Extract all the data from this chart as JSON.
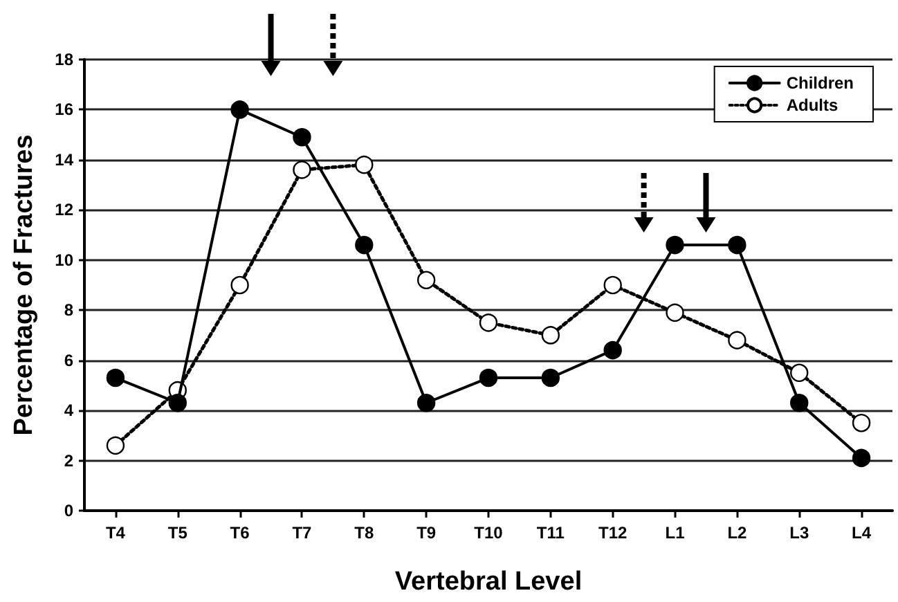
{
  "chart_data": {
    "type": "line",
    "xlabel": "Vertebral Level",
    "ylabel": "Percentage of Fractures",
    "categories": [
      "T4",
      "T5",
      "T6",
      "T7",
      "T8",
      "T9",
      "T10",
      "T11",
      "T12",
      "L1",
      "L2",
      "L3",
      "L4"
    ],
    "series": [
      {
        "name": "Children",
        "color": "#000000",
        "line_style": "solid",
        "marker": "circle",
        "values": [
          5.3,
          4.3,
          16.0,
          14.9,
          10.6,
          4.3,
          5.3,
          5.3,
          6.4,
          10.6,
          10.6,
          4.3,
          2.1
        ]
      },
      {
        "name": "Adults",
        "color": "#000000",
        "line_style": "dotted",
        "marker": "circle",
        "values": [
          2.6,
          4.8,
          9.0,
          13.6,
          13.8,
          9.2,
          7.5,
          7.0,
          9.0,
          7.9,
          6.8,
          5.5,
          3.5
        ]
      }
    ],
    "ylim": [
      0,
      18
    ],
    "yticks": [
      0,
      2,
      4,
      6,
      8,
      10,
      12,
      14,
      16,
      18
    ],
    "grid": "y",
    "legend": "top right"
  }
}
